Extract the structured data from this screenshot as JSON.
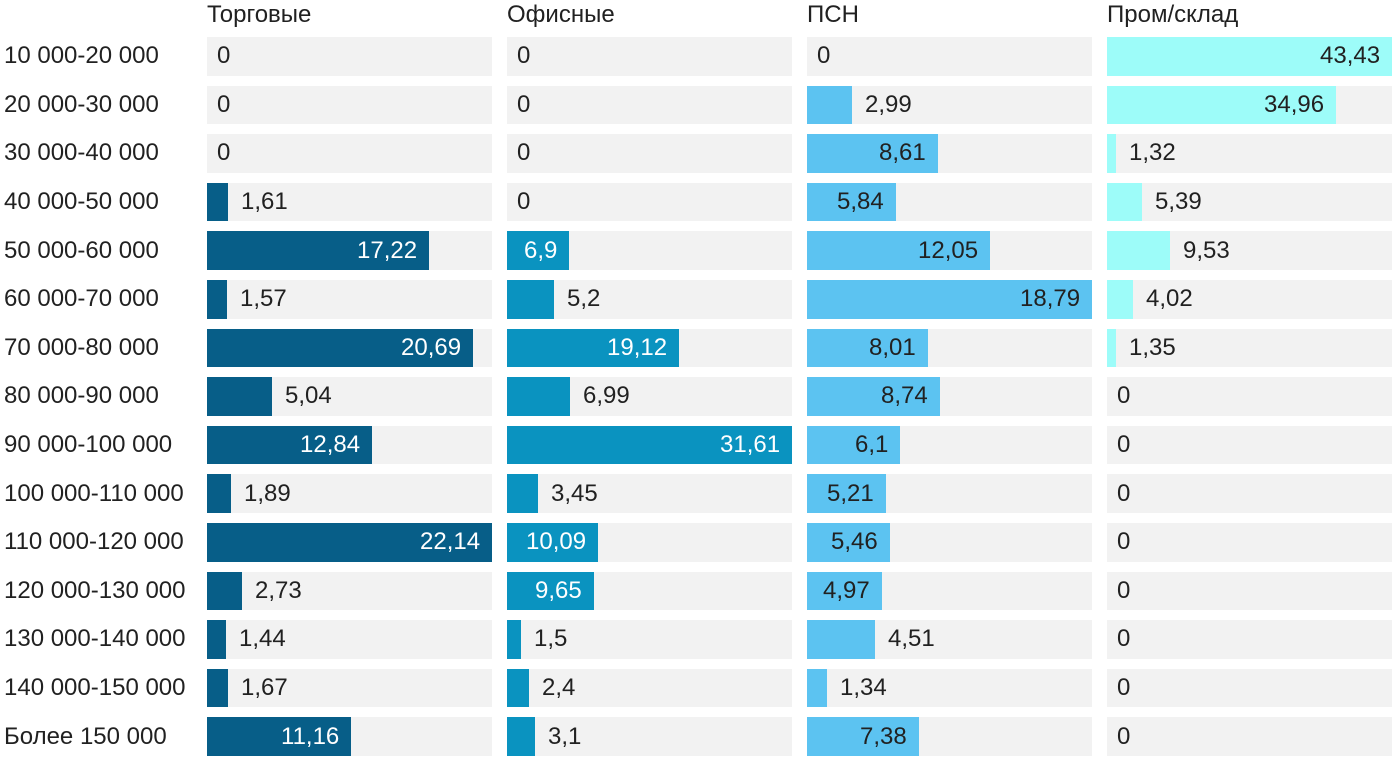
{
  "chart_data": {
    "type": "bar",
    "orientation": "horizontal",
    "title": "",
    "track_color": "#f2f2f2",
    "text_color": "#212121",
    "scaling": "each column scaled independently to its own maximum value",
    "legend_position": "column headers on top",
    "categories": [
      "10 000-20 000",
      "20 000-30 000",
      "30 000-40 000",
      "40 000-50 000",
      "50 000-60 000",
      "60 000-70 000",
      "70 000-80 000",
      "80 000-90 000",
      "90 000-100 000",
      "100 000-110 000",
      "110 000-120 000",
      "120 000-130 000",
      "130 000-140 000",
      "140 000-150 000",
      "Более 150 000"
    ],
    "series": [
      {
        "name": "Торговые",
        "color": "#075e88",
        "inside_label_color": "#ffffff",
        "values": [
          0,
          0,
          0,
          1.61,
          17.22,
          1.57,
          20.69,
          5.04,
          12.84,
          1.89,
          22.14,
          2.73,
          1.44,
          1.67,
          11.16
        ],
        "labels": [
          "0",
          "0",
          "0",
          "1,61",
          "17,22",
          "1,57",
          "20,69",
          "5,04",
          "12,84",
          "1,89",
          "22,14",
          "2,73",
          "1,44",
          "1,67",
          "11,16"
        ]
      },
      {
        "name": "Офисные",
        "color": "#0a93c0",
        "inside_label_color": "#ffffff",
        "values": [
          0,
          0,
          0,
          0,
          6.9,
          5.2,
          19.12,
          6.99,
          31.61,
          3.45,
          10.09,
          9.65,
          1.5,
          2.4,
          3.1
        ],
        "labels": [
          "0",
          "0",
          "0",
          "0",
          "6,9",
          "5,2",
          "19,12",
          "6,99",
          "31,61",
          "3,45",
          "10,09",
          "9,65",
          "1,5",
          "2,4",
          "3,1"
        ]
      },
      {
        "name": "ПСН",
        "color": "#5cc3f1",
        "inside_label_color": "#212121",
        "values": [
          0,
          2.99,
          8.61,
          5.84,
          12.05,
          18.79,
          8.01,
          8.74,
          6.1,
          5.21,
          5.46,
          4.97,
          4.51,
          1.34,
          7.38
        ],
        "labels": [
          "0",
          "2,99",
          "8,61",
          "5,84",
          "12,05",
          "18,79",
          "8,01",
          "8,74",
          "6,1",
          "5,21",
          "5,46",
          "4,97",
          "4,51",
          "1,34",
          "7,38"
        ]
      },
      {
        "name": "Пром/склад",
        "color": "#9dfcf9",
        "inside_label_color": "#212121",
        "values": [
          43.43,
          34.96,
          1.32,
          5.39,
          9.53,
          4.02,
          1.35,
          0,
          0,
          0,
          0,
          0,
          0,
          0,
          0
        ],
        "labels": [
          "43,43",
          "34,96",
          "1,32",
          "5,39",
          "9,53",
          "4,02",
          "1,35",
          "0",
          "0",
          "0",
          "0",
          "0",
          "0",
          "0",
          "0"
        ]
      }
    ]
  }
}
